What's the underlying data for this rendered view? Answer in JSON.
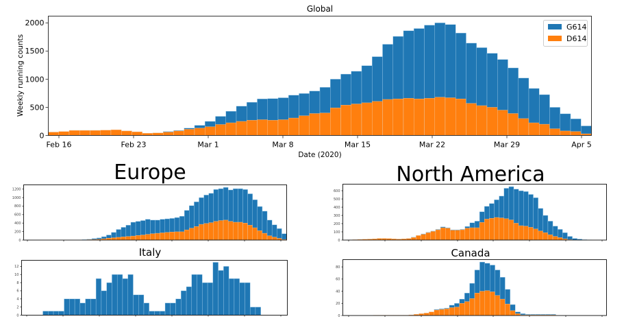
{
  "colors": {
    "G614": "#1f77b4",
    "D614": "#ff7f0e"
  },
  "chart_data": [
    {
      "type": "bar",
      "stacked": true,
      "title": "Global",
      "xlabel": "Date (2020)",
      "ylabel": "Weekly running counts",
      "ylim": [
        0,
        2120
      ],
      "yticks": [
        0,
        500,
        1000,
        1500,
        2000
      ],
      "xtick_labels": [
        "Feb 16",
        "Feb 23",
        "Mar 1",
        "Mar 8",
        "Mar 15",
        "Mar 22",
        "Mar 29",
        "Apr 5"
      ],
      "legend": [
        "G614",
        "D614"
      ],
      "legend_position": "top-right",
      "start_day": "Feb 15",
      "total": [
        60,
        70,
        90,
        90,
        90,
        95,
        100,
        80,
        65,
        40,
        45,
        70,
        90,
        130,
        180,
        250,
        340,
        430,
        520,
        590,
        650,
        655,
        670,
        715,
        745,
        790,
        855,
        1000,
        1090,
        1140,
        1240,
        1400,
        1620,
        1760,
        1860,
        1900,
        1960,
        2000,
        1970,
        1820,
        1640,
        1560,
        1460,
        1350,
        1200,
        1020,
        835,
        725,
        500,
        385,
        295,
        170
      ],
      "series": [
        {
          "name": "D614",
          "values": [
            60,
            70,
            90,
            90,
            90,
            95,
            100,
            80,
            65,
            40,
            45,
            60,
            80,
            110,
            130,
            155,
            195,
            225,
            250,
            270,
            280,
            270,
            280,
            310,
            350,
            390,
            400,
            490,
            540,
            560,
            580,
            605,
            640,
            650,
            660,
            650,
            660,
            680,
            670,
            650,
            570,
            530,
            500,
            450,
            390,
            300,
            225,
            200,
            120,
            80,
            70,
            30
          ]
        }
      ]
    },
    {
      "type": "bar",
      "stacked": true,
      "title": "Europe",
      "ylim": [
        0,
        1300
      ],
      "yticks": [
        0,
        200,
        400,
        600,
        800,
        1000,
        1200
      ],
      "total": [
        0,
        0,
        0,
        0,
        0,
        0,
        0,
        0,
        0,
        0,
        0,
        5,
        10,
        20,
        35,
        50,
        80,
        120,
        180,
        250,
        300,
        350,
        420,
        440,
        460,
        490,
        470,
        470,
        490,
        500,
        510,
        530,
        560,
        700,
        810,
        900,
        1000,
        1060,
        1100,
        1190,
        1210,
        1240,
        1180,
        1210,
        1210,
        1190,
        1090,
        950,
        790,
        680,
        470,
        360,
        270,
        150
      ],
      "series": [
        {
          "name": "D614",
          "values": [
            0,
            0,
            0,
            0,
            0,
            0,
            0,
            0,
            0,
            0,
            0,
            2,
            5,
            10,
            15,
            20,
            30,
            45,
            55,
            65,
            75,
            85,
            95,
            110,
            120,
            135,
            150,
            160,
            170,
            180,
            190,
            195,
            195,
            240,
            280,
            320,
            370,
            390,
            410,
            440,
            460,
            470,
            440,
            420,
            420,
            400,
            350,
            290,
            220,
            160,
            100,
            70,
            40,
            15
          ]
        }
      ]
    },
    {
      "type": "bar",
      "stacked": true,
      "title": "North America",
      "ylim": [
        0,
        680
      ],
      "yticks": [
        0,
        100,
        200,
        300,
        400,
        500,
        600
      ],
      "total": [
        0,
        3,
        5,
        8,
        10,
        12,
        15,
        20,
        20,
        18,
        15,
        12,
        15,
        20,
        35,
        55,
        75,
        95,
        110,
        130,
        160,
        150,
        125,
        125,
        130,
        165,
        210,
        230,
        345,
        410,
        445,
        490,
        535,
        630,
        650,
        620,
        600,
        590,
        555,
        515,
        385,
        300,
        230,
        170,
        130,
        90,
        45,
        20,
        12,
        5,
        3,
        2,
        1,
        0
      ],
      "series": [
        {
          "name": "D614",
          "values": [
            0,
            3,
            5,
            8,
            10,
            12,
            15,
            20,
            20,
            18,
            15,
            12,
            15,
            18,
            32,
            55,
            70,
            90,
            105,
            125,
            150,
            145,
            120,
            120,
            125,
            145,
            150,
            150,
            215,
            255,
            265,
            275,
            270,
            260,
            245,
            205,
            175,
            170,
            155,
            135,
            110,
            90,
            65,
            45,
            30,
            15,
            5,
            2,
            1,
            0,
            0,
            0,
            0,
            0
          ]
        }
      ]
    },
    {
      "type": "bar",
      "title": "Italy",
      "ylim": [
        0,
        13.5
      ],
      "yticks": [
        0,
        2,
        4,
        6,
        8,
        10,
        12
      ],
      "series": [
        {
          "name": "G614",
          "values": [
            0,
            0,
            0,
            0,
            1,
            1,
            1,
            1,
            4,
            4,
            4,
            3,
            4,
            4,
            9,
            6,
            8,
            10,
            10,
            9,
            10,
            5,
            5,
            3,
            1,
            1,
            1,
            3,
            3,
            4,
            6,
            7,
            10,
            10,
            8,
            8,
            13,
            11,
            12,
            9,
            9,
            8,
            8,
            2,
            2,
            0,
            0,
            0,
            0,
            0
          ]
        }
      ]
    },
    {
      "type": "bar",
      "stacked": true,
      "title": "Canada",
      "ylim": [
        0,
        92
      ],
      "yticks": [
        0,
        20,
        40,
        60,
        80
      ],
      "total": [
        0,
        0,
        0,
        0,
        0,
        0,
        0,
        0,
        0,
        0,
        0,
        0,
        0,
        1,
        2,
        3,
        4,
        6,
        10,
        11,
        12,
        17,
        20,
        27,
        37,
        53,
        75,
        88,
        86,
        83,
        75,
        63,
        43,
        18,
        6,
        3,
        2,
        2,
        2,
        2,
        2,
        2,
        0,
        0,
        0,
        0,
        0,
        0,
        0,
        0,
        0,
        0
      ],
      "series": [
        {
          "name": "D614",
          "values": [
            0,
            0,
            0,
            0,
            0,
            0,
            0.5,
            0.5,
            0.5,
            0.5,
            0.5,
            0.5,
            0.5,
            1,
            2,
            3,
            4,
            6,
            9,
            10,
            11,
            13,
            14,
            20,
            23,
            28,
            37,
            40,
            41,
            39,
            33,
            27,
            19,
            8,
            3,
            1,
            1,
            1,
            1,
            1,
            1,
            1,
            0,
            0,
            0,
            0,
            0,
            0,
            0,
            0,
            0,
            0
          ]
        }
      ]
    }
  ]
}
